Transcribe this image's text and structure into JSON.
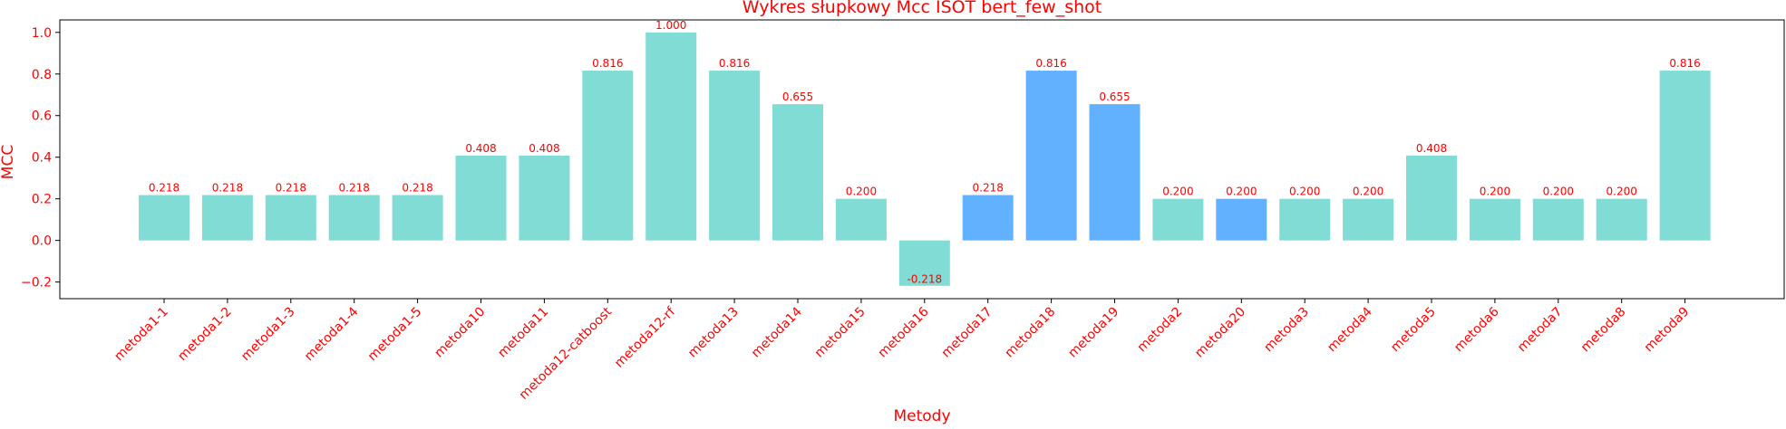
{
  "colors": {
    "text": "#ff0000",
    "bar_default": "#80dcd4",
    "bar_highlight": "#62b1ff",
    "axis": "#000000"
  },
  "chart_data": {
    "type": "bar",
    "title": "Wykres słupkowy Mcc ISOT bert_few_shot",
    "xlabel": "Metody",
    "ylabel": "MCC",
    "ylim": [
      -0.28,
      1.06
    ],
    "yticks": [
      -0.2,
      0.0,
      0.2,
      0.4,
      0.6,
      0.8,
      1.0
    ],
    "ytick_labels": [
      "−0.2",
      "0.0",
      "0.2",
      "0.4",
      "0.6",
      "0.8",
      "1.0"
    ],
    "grid": false,
    "categories": [
      "metoda1-1",
      "metoda1-2",
      "metoda1-3",
      "metoda1-4",
      "metoda1-5",
      "metoda10",
      "metoda11",
      "metoda12-catboost",
      "metoda12-rf",
      "metoda13",
      "metoda14",
      "metoda15",
      "metoda16",
      "metoda17",
      "metoda18",
      "metoda19",
      "metoda2",
      "metoda20",
      "metoda3",
      "metoda4",
      "metoda5",
      "metoda6",
      "metoda7",
      "metoda8",
      "metoda9"
    ],
    "values": [
      0.218,
      0.218,
      0.218,
      0.218,
      0.218,
      0.408,
      0.408,
      0.816,
      1.0,
      0.816,
      0.655,
      0.2,
      -0.218,
      0.218,
      0.816,
      0.655,
      0.2,
      0.2,
      0.2,
      0.2,
      0.408,
      0.2,
      0.2,
      0.2,
      0.816
    ],
    "value_labels": [
      "0.218",
      "0.218",
      "0.218",
      "0.218",
      "0.218",
      "0.408",
      "0.408",
      "0.816",
      "1.000",
      "0.816",
      "0.655",
      "0.200",
      "-0.218",
      "0.218",
      "0.816",
      "0.655",
      "0.200",
      "0.200",
      "0.200",
      "0.200",
      "0.408",
      "0.200",
      "0.200",
      "0.200",
      "0.816"
    ],
    "bar_colors": [
      "#80dcd4",
      "#80dcd4",
      "#80dcd4",
      "#80dcd4",
      "#80dcd4",
      "#80dcd4",
      "#80dcd4",
      "#80dcd4",
      "#80dcd4",
      "#80dcd4",
      "#80dcd4",
      "#80dcd4",
      "#80dcd4",
      "#62b1ff",
      "#62b1ff",
      "#62b1ff",
      "#80dcd4",
      "#62b1ff",
      "#80dcd4",
      "#80dcd4",
      "#80dcd4",
      "#80dcd4",
      "#80dcd4",
      "#80dcd4",
      "#80dcd4"
    ]
  }
}
